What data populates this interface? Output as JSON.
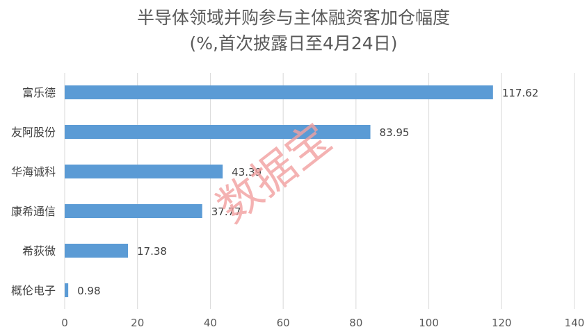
{
  "colors": {
    "bar": "#5b9bd5",
    "gridline": "#d9d9d9",
    "watermark": "#f2a0a0"
  },
  "watermark_text": "数据宝",
  "chart_data": {
    "type": "bar",
    "orientation": "horizontal",
    "title": "半导体领域并购参与主体融资客加仓幅度",
    "subtitle": "(%,首次披露日至4月24日)",
    "categories": [
      "富乐德",
      "友阿股份",
      "华海诚科",
      "康希通信",
      "希荻微",
      "概伦电子"
    ],
    "values": [
      117.62,
      83.95,
      43.39,
      37.77,
      17.38,
      0.98
    ],
    "value_labels": [
      "117.62",
      "83.95",
      "43.39",
      "37.77",
      "17.38",
      "0.98"
    ],
    "xlim": [
      0,
      140
    ],
    "x_ticks": [
      "0",
      "20",
      "40",
      "60",
      "80",
      "100",
      "120",
      "140"
    ],
    "xlabel": "",
    "ylabel": "",
    "grid": "vertical"
  }
}
